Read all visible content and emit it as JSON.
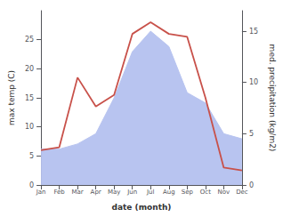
{
  "chart_data": {
    "type": "line",
    "categories": [
      "Jan",
      "Feb",
      "Mar",
      "Apr",
      "May",
      "Jun",
      "Jul",
      "Aug",
      "Sep",
      "Oct",
      "Nov",
      "Dec"
    ],
    "series": [
      {
        "type": "area",
        "axis": "y2",
        "color": "#b8c4f0",
        "values": [
          3.5,
          3.5,
          4.0,
          5.0,
          8.5,
          13.0,
          15.0,
          13.5,
          9.0,
          8.0,
          5.0,
          4.5
        ]
      },
      {
        "type": "line",
        "axis": "y",
        "color": "#c8514a",
        "values": [
          6.0,
          6.5,
          18.5,
          13.5,
          15.5,
          26.0,
          28.0,
          26.0,
          25.5,
          15.0,
          3.0,
          2.5
        ]
      }
    ],
    "xlabel": "date (month)",
    "ylabel": "max temp (C)",
    "y2label": "med. precipitation (kg/m2)",
    "ylim": [
      0,
      30
    ],
    "yticks": [
      0,
      5,
      10,
      15,
      20,
      25
    ],
    "y2lim": [
      0,
      17
    ],
    "y2ticks": [
      0,
      5,
      10,
      15
    ],
    "grid": false
  }
}
